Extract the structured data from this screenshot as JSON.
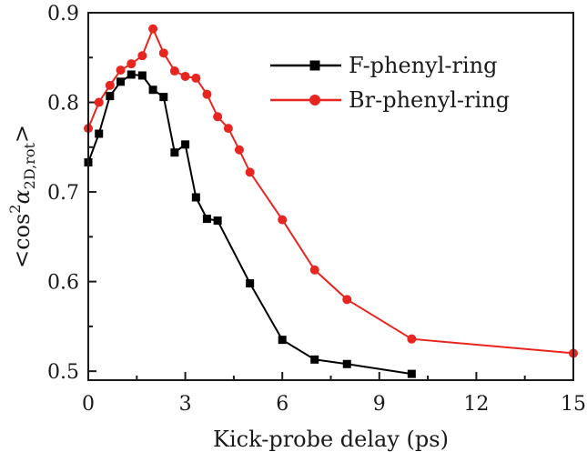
{
  "chart_data": {
    "type": "line",
    "title": "",
    "xlabel": "Kick-probe delay (ps)",
    "ylabel": {
      "prefix": "<cos",
      "sup": "2",
      "symbol": "α",
      "sub": "2D,rot",
      "suffix": ">"
    },
    "xlim": [
      0,
      15
    ],
    "ylim": [
      0.49,
      0.9
    ],
    "xticks": [
      "0",
      "3",
      "6",
      "9",
      "12",
      "15"
    ],
    "xtick_values": [
      0,
      3,
      6,
      9,
      12,
      15
    ],
    "yticks": [
      "0.5",
      "0.6",
      "0.7",
      "0.8",
      "0.9"
    ],
    "ytick_values": [
      0.5,
      0.6,
      0.7,
      0.8,
      0.9
    ],
    "grid": false,
    "legend_position": "top-right",
    "series": [
      {
        "name": "F-phenyl-ring",
        "color": "#000000",
        "marker": "square",
        "x": [
          0,
          0.33,
          0.67,
          1.0,
          1.33,
          1.67,
          2.0,
          2.33,
          2.67,
          3.0,
          3.33,
          3.67,
          4.0,
          5.0,
          6.0,
          7.0,
          8.0,
          10.0
        ],
        "y": [
          0.733,
          0.765,
          0.807,
          0.823,
          0.831,
          0.83,
          0.814,
          0.806,
          0.744,
          0.753,
          0.694,
          0.67,
          0.668,
          0.598,
          0.535,
          0.513,
          0.508,
          0.497
        ]
      },
      {
        "name": "Br-phenyl-ring",
        "color": "#e8251f",
        "marker": "circle",
        "x": [
          0,
          0.33,
          0.67,
          1.0,
          1.33,
          1.67,
          2.0,
          2.33,
          2.67,
          3.0,
          3.33,
          3.67,
          4.0,
          4.33,
          4.67,
          5.0,
          6.0,
          7.0,
          8.0,
          10.0,
          15.0
        ],
        "y": [
          0.771,
          0.8,
          0.819,
          0.836,
          0.843,
          0.852,
          0.882,
          0.855,
          0.835,
          0.829,
          0.827,
          0.809,
          0.784,
          0.771,
          0.747,
          0.722,
          0.669,
          0.613,
          0.58,
          0.536,
          0.52
        ]
      }
    ]
  }
}
